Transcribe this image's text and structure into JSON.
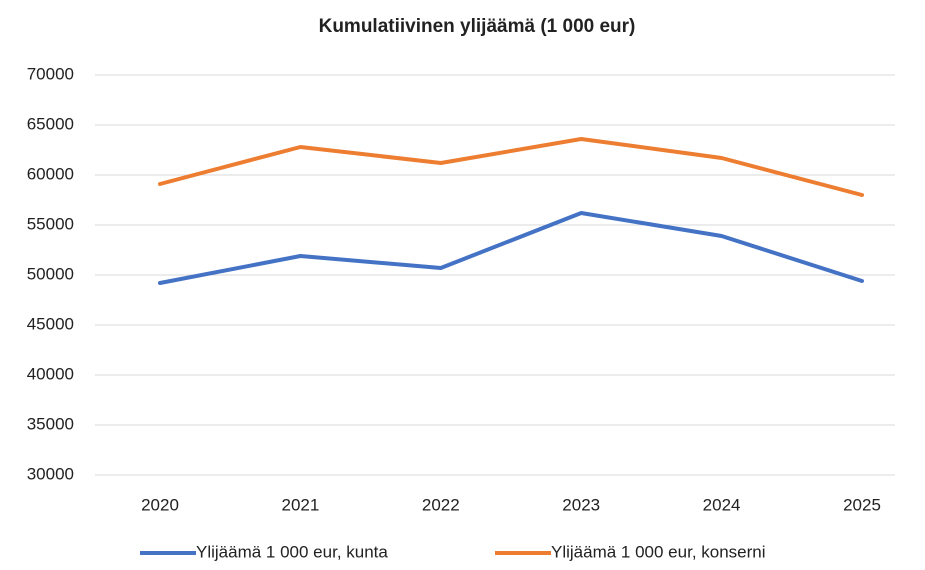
{
  "chart_data": {
    "type": "line",
    "title": "Kumulatiivinen ylijäämä (1 000 eur)",
    "categories": [
      "2020",
      "2021",
      "2022",
      "2023",
      "2024",
      "2025"
    ],
    "series": [
      {
        "name": "Ylijäämä 1 000 eur, kunta",
        "color": "#4472c4",
        "values": [
          49200,
          51900,
          50700,
          56200,
          53900,
          49400
        ]
      },
      {
        "name": "Ylijäämä 1 000 eur, konserni",
        "color": "#ed7d31",
        "values": [
          59100,
          62800,
          61200,
          63600,
          61700,
          58000
        ]
      }
    ],
    "ylim": [
      30000,
      70000
    ],
    "yticks": [
      30000,
      35000,
      40000,
      45000,
      50000,
      55000,
      60000,
      65000,
      70000
    ],
    "grid": true,
    "legend": "bottom"
  }
}
